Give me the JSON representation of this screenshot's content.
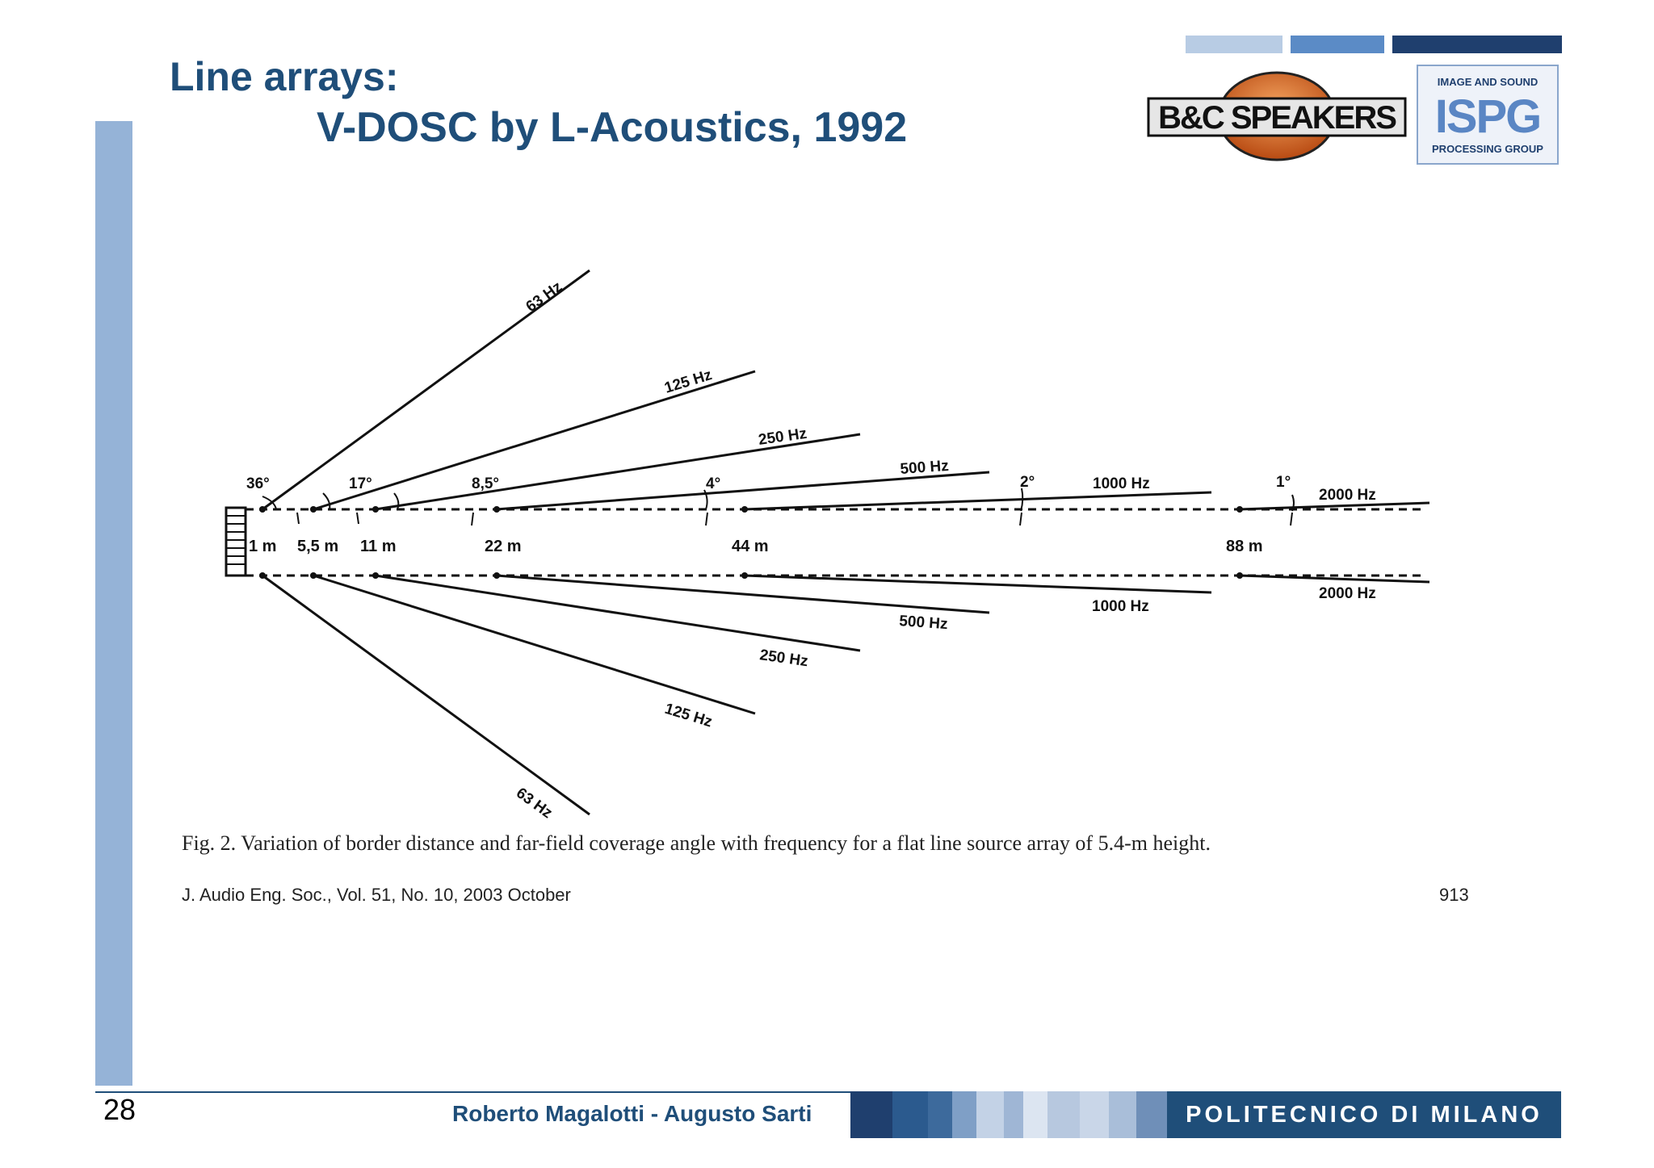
{
  "slide": {
    "title_line1": "Line arrays:",
    "title_line2": "V-DOSC by L-Acoustics, 1992",
    "page_number": "28",
    "authors": "Roberto Magalotti - Augusto Sarti",
    "institution": "POLITECNICO DI MILANO"
  },
  "logos": {
    "bc": "B&C SPEAKERS",
    "ispg_top": "IMAGE AND SOUND",
    "ispg_big": "ISPG",
    "ispg_bottom": "PROCESSING GROUP"
  },
  "figure": {
    "caption": "Fig. 2. Variation of border distance and far-field coverage angle with frequency for a flat line source array of 5.4-m height.",
    "citation": "J. Audio Eng. Soc., Vol. 51, No. 10, 2003 October",
    "page_ref": "913",
    "distances": [
      "1 m",
      "5,5 m",
      "11 m",
      "22 m",
      "44 m",
      "88 m"
    ],
    "angles": [
      "36°",
      "17°",
      "8,5°",
      "4°",
      "2°",
      "1°"
    ],
    "freq_upper": [
      "63 Hz",
      "125 Hz",
      "250 Hz",
      "500 Hz",
      "1000 Hz",
      "2000 Hz"
    ],
    "freq_lower": [
      "63 Hz",
      "125 Hz",
      "250 Hz",
      "500 Hz",
      "1000 Hz",
      "2000 Hz"
    ]
  },
  "colors": {
    "title": "#1f4e79",
    "left_bar": "#95b3d7",
    "footer_dark": "#1f4e79"
  }
}
